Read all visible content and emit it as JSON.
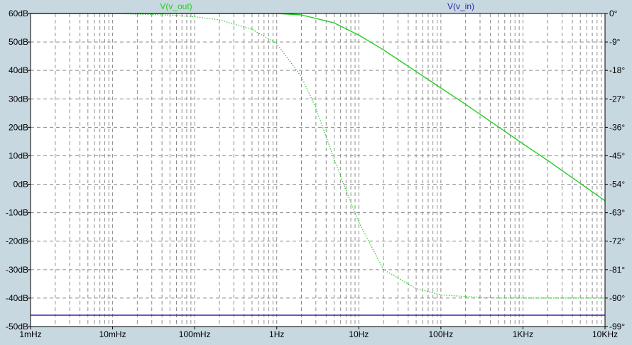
{
  "chart_data": {
    "type": "line",
    "x_scale": "log",
    "xlim": [
      0.001,
      10000
    ],
    "x_unit": "Hz",
    "x_tick_values": [
      0.001,
      0.01,
      0.1,
      1,
      10,
      100,
      1000,
      10000
    ],
    "x_tick_labels": [
      "1mHz",
      "10mHz",
      "100mHz",
      "1Hz",
      "10Hz",
      "100Hz",
      "1KHz",
      "10KHz"
    ],
    "ylim": [
      -50,
      60
    ],
    "y_tick_values": [
      60,
      50,
      40,
      30,
      20,
      10,
      0,
      -10,
      -20,
      -30,
      -40,
      -50
    ],
    "y_tick_labels": [
      "60dB",
      "50dB",
      "40dB",
      "30dB",
      "20dB",
      "10dB",
      "0dB",
      "-10dB",
      "-20dB",
      "-30dB",
      "-40dB",
      "-50dB"
    ],
    "y2lim": [
      -99,
      0
    ],
    "y2_tick_values": [
      0,
      -9,
      -18,
      -27,
      -36,
      -45,
      -54,
      -63,
      -72,
      -81,
      -90,
      -99
    ],
    "y2_tick_labels": [
      "0°",
      "-9°",
      "-18°",
      "-27°",
      "-36°",
      "-45°",
      "-54°",
      "-63°",
      "-72°",
      "-81°",
      "-90°",
      "-99°"
    ],
    "grid": true,
    "legend": [
      {
        "label": "V(v_out)",
        "color": "#22cc22"
      },
      {
        "label": "V(v_in)",
        "color": "#2a2aa8"
      }
    ],
    "series": [
      {
        "name": "V(v_out)",
        "kind": "magnitude",
        "axis": "left",
        "color": "#22cc22",
        "style": "solid",
        "x": [
          0.001,
          0.01,
          0.1,
          0.5,
          1,
          2,
          5,
          10,
          20,
          50,
          100,
          200,
          500,
          1000,
          2000,
          5000,
          10000
        ],
        "y": [
          60,
          60,
          60,
          60,
          60,
          59.5,
          56.7,
          52.4,
          47.2,
          39.6,
          33.8,
          28.1,
          20.2,
          14.2,
          8.4,
          0.3,
          -5.8
        ]
      },
      {
        "name": "V(v_out)",
        "kind": "phase",
        "axis": "right",
        "color": "#22cc22",
        "style": "dotted",
        "x": [
          0.001,
          0.01,
          0.05,
          0.1,
          0.2,
          0.5,
          1,
          2,
          3,
          5,
          7,
          10,
          20,
          50,
          100,
          200,
          500,
          1000,
          10000
        ],
        "y": [
          0,
          0,
          -0.5,
          -1,
          -2,
          -5,
          -9.5,
          -20,
          -30,
          -46,
          -56,
          -66,
          -81,
          -87,
          -89,
          -89.5,
          -90,
          -90,
          -90
        ]
      },
      {
        "name": "V(v_in)",
        "kind": "magnitude",
        "axis": "left",
        "color": "#2a2aa8",
        "style": "solid",
        "x": [
          0.001,
          10000
        ],
        "y": [
          -46,
          -46
        ]
      }
    ]
  }
}
